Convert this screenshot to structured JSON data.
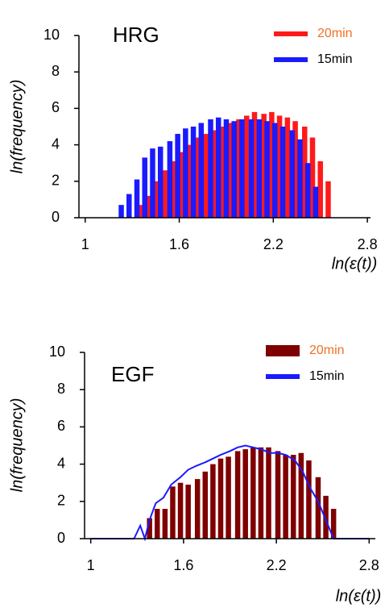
{
  "chart_data": [
    {
      "type": "bar",
      "title": "HRG",
      "xlabel": "ln(ε(t))",
      "ylabel": "ln(frequency)",
      "xlim": [
        0.96,
        2.82
      ],
      "xticks": [
        1,
        1.6,
        2.2,
        2.8
      ],
      "ylim": [
        0,
        10
      ],
      "yticks": [
        0,
        2,
        4,
        6,
        8,
        10
      ],
      "series": [
        {
          "name": "20min",
          "color": "#ff1a1a",
          "type": "bar",
          "x": [
            1.36,
            1.41,
            1.46,
            1.51,
            1.56,
            1.62,
            1.67,
            1.72,
            1.77,
            1.82,
            1.88,
            1.93,
            1.98,
            2.03,
            2.08,
            2.14,
            2.19,
            2.24,
            2.29,
            2.34,
            2.4,
            2.45,
            2.5,
            2.55
          ],
          "values": [
            0.7,
            1.2,
            2.0,
            2.6,
            3.1,
            3.6,
            4.0,
            4.4,
            4.6,
            4.8,
            5.0,
            5.2,
            5.4,
            5.6,
            5.8,
            5.7,
            5.8,
            5.6,
            5.5,
            5.3,
            5.0,
            4.4,
            3.1,
            2.0
          ]
        },
        {
          "name": "15min",
          "color": "#1a1aff",
          "type": "bar",
          "x": [
            1.23,
            1.28,
            1.33,
            1.38,
            1.43,
            1.48,
            1.54,
            1.59,
            1.64,
            1.69,
            1.74,
            1.8,
            1.85,
            1.9,
            1.95,
            2.0,
            2.06,
            2.11,
            2.16,
            2.21,
            2.26,
            2.32,
            2.37,
            2.42,
            2.47
          ],
          "values": [
            0.7,
            1.3,
            2.1,
            3.3,
            3.8,
            3.9,
            4.2,
            4.6,
            4.9,
            5.0,
            5.2,
            5.4,
            5.5,
            5.4,
            5.3,
            5.4,
            5.4,
            5.4,
            5.3,
            5.2,
            5.0,
            4.8,
            4.3,
            3.0,
            1.7
          ]
        }
      ]
    },
    {
      "type": "bar",
      "title": "EGF",
      "xlabel": "ln(ε(t))",
      "ylabel": "ln(frequency)",
      "xlim": [
        0.96,
        2.84
      ],
      "xticks": [
        1,
        1.6,
        2.2,
        2.8
      ],
      "ylim": [
        0,
        10
      ],
      "yticks": [
        0,
        2,
        4,
        6,
        8,
        10
      ],
      "series": [
        {
          "name": "20min",
          "color": "#7f0000",
          "type": "bar",
          "x": [
            1.38,
            1.43,
            1.48,
            1.53,
            1.58,
            1.63,
            1.69,
            1.74,
            1.79,
            1.84,
            1.89,
            1.95,
            2.0,
            2.05,
            2.1,
            2.15,
            2.21,
            2.26,
            2.31,
            2.36,
            2.41,
            2.47,
            2.52,
            2.57
          ],
          "values": [
            1.1,
            1.6,
            1.6,
            2.8,
            3.0,
            2.9,
            3.2,
            3.6,
            4.0,
            4.3,
            4.4,
            4.7,
            4.8,
            4.9,
            4.9,
            4.9,
            4.7,
            4.5,
            4.5,
            4.6,
            4.2,
            3.3,
            2.3,
            1.6
          ]
        },
        {
          "name": "15min",
          "color": "#1a1aff",
          "type": "line",
          "x": [
            1.0,
            1.28,
            1.32,
            1.35,
            1.38,
            1.42,
            1.47,
            1.52,
            1.58,
            1.63,
            1.68,
            1.74,
            1.79,
            1.84,
            1.9,
            1.95,
            2.0,
            2.05,
            2.1,
            2.16,
            2.21,
            2.26,
            2.32,
            2.37,
            2.42,
            2.47,
            2.52,
            2.57,
            2.8
          ],
          "values": [
            0,
            0,
            0.7,
            0,
            1.0,
            1.9,
            2.2,
            2.9,
            3.3,
            3.7,
            3.9,
            4.1,
            4.3,
            4.5,
            4.7,
            4.9,
            5.0,
            4.9,
            4.8,
            4.6,
            4.6,
            4.5,
            4.2,
            3.6,
            2.7,
            2.0,
            1.0,
            0,
            0
          ]
        }
      ]
    }
  ]
}
